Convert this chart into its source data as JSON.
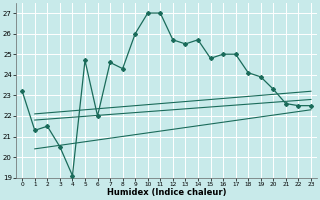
{
  "xlabel": "Humidex (Indice chaleur)",
  "xlim": [
    -0.5,
    23.5
  ],
  "ylim": [
    19,
    27.5
  ],
  "yticks": [
    19,
    20,
    21,
    22,
    23,
    24,
    25,
    26,
    27
  ],
  "xticks": [
    0,
    1,
    2,
    3,
    4,
    5,
    6,
    7,
    8,
    9,
    10,
    11,
    12,
    13,
    14,
    15,
    16,
    17,
    18,
    19,
    20,
    21,
    22,
    23
  ],
  "bg_color": "#c8eaea",
  "line_color": "#1a6b5a",
  "main_line_x": [
    0,
    1,
    2,
    3,
    4,
    5,
    6,
    7,
    8,
    9,
    10,
    11,
    12,
    13,
    14,
    15,
    16,
    17,
    18,
    19,
    20,
    21,
    22,
    23
  ],
  "main_line_y": [
    23.2,
    21.3,
    21.5,
    20.5,
    19.1,
    24.7,
    22.0,
    24.6,
    24.3,
    26.0,
    27.0,
    27.0,
    25.7,
    25.5,
    25.7,
    24.8,
    25.0,
    25.0,
    24.1,
    23.9,
    23.3,
    22.6,
    22.5,
    22.5
  ],
  "trend1_x": [
    1,
    23
  ],
  "trend1_y": [
    21.8,
    22.8
  ],
  "trend2_x": [
    1,
    23
  ],
  "trend2_y": [
    22.1,
    23.2
  ],
  "trend3_x": [
    1,
    23
  ],
  "trend3_y": [
    20.4,
    22.3
  ]
}
